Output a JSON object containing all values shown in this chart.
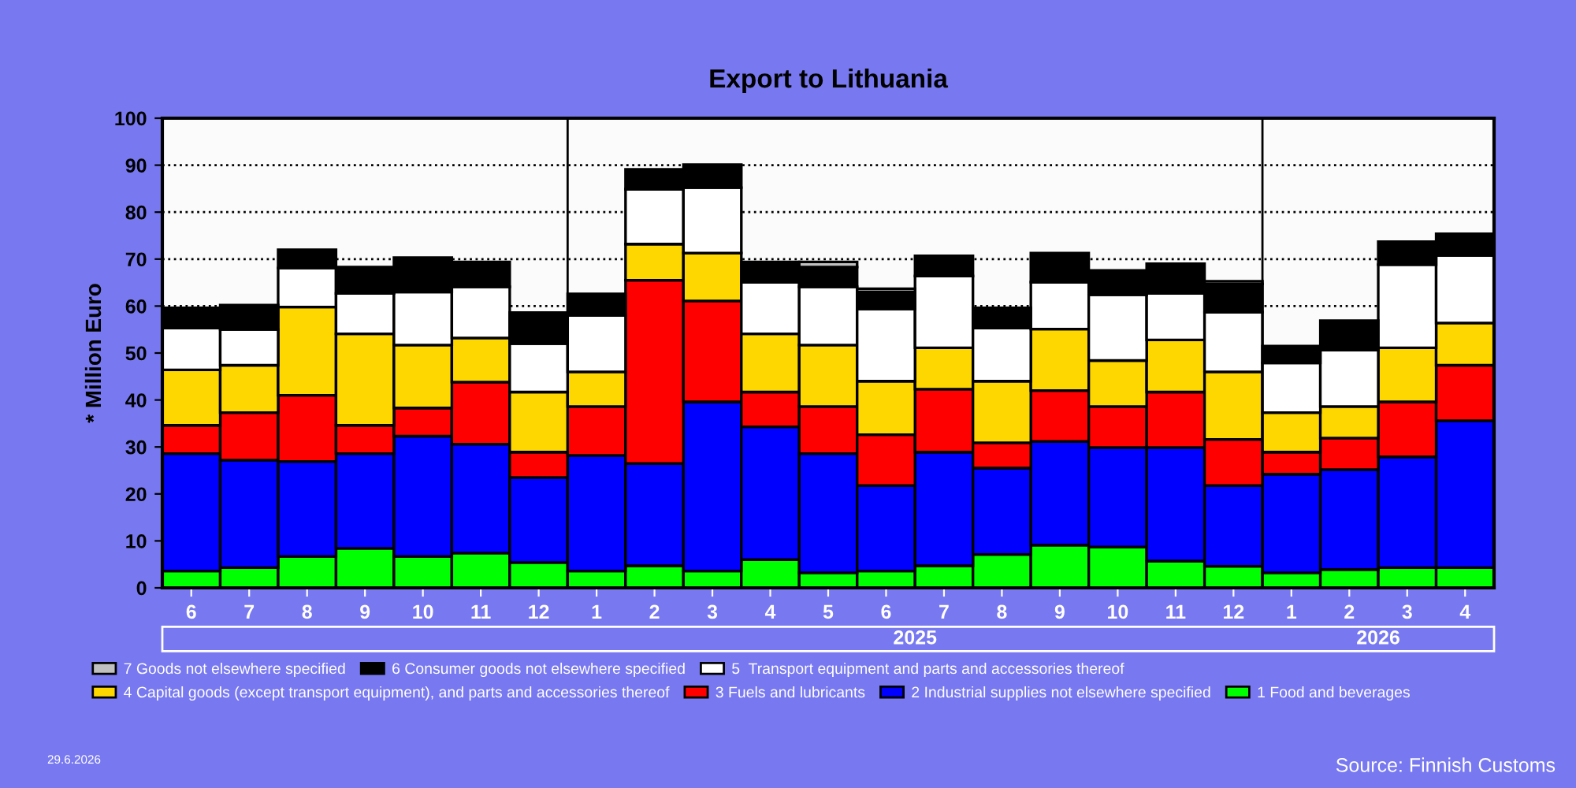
{
  "chart_data": {
    "type": "bar",
    "stacked": true,
    "title": "Export to Lithuania",
    "ylabel": "* Million Euro",
    "categories": [
      "6",
      "7",
      "8",
      "9",
      "10",
      "11",
      "12",
      "1",
      "2",
      "3",
      "4",
      "5",
      "6",
      "7",
      "8",
      "9",
      "10",
      "11",
      "12",
      "1",
      "2",
      "3",
      "4"
    ],
    "series": [
      {
        "name": "1 Food and beverages",
        "color": "#00ff00",
        "values": [
          3.6,
          4.3,
          6.7,
          8.4,
          6.7,
          7.4,
          5.4,
          3.6,
          4.7,
          3.6,
          6.0,
          3.2,
          3.6,
          4.7,
          7.1,
          9.1,
          8.7,
          5.7,
          4.6,
          3.2,
          3.9,
          4.3,
          4.3
        ]
      },
      {
        "name": "2 Industrial supplies not elsewhere specified",
        "color": "#0000ff",
        "values": [
          25.0,
          22.9,
          20.2,
          20.2,
          25.6,
          23.2,
          18.1,
          24.6,
          21.8,
          36.0,
          28.3,
          25.4,
          18.2,
          24.2,
          18.4,
          22.1,
          21.2,
          24.2,
          17.2,
          21.0,
          21.3,
          23.6,
          31.3
        ]
      },
      {
        "name": "3 Fuels and lubricants",
        "color": "#ff0000",
        "values": [
          6.0,
          10.1,
          14.1,
          6.0,
          6.0,
          13.2,
          5.4,
          10.4,
          39.0,
          21.5,
          7.4,
          10.0,
          10.8,
          13.4,
          5.4,
          10.8,
          8.7,
          11.8,
          9.8,
          4.7,
          6.7,
          11.7,
          11.8
        ]
      },
      {
        "name": "4 Capital goods (except transport equipment), and parts and accessories thereof",
        "color": "#ffd700",
        "values": [
          11.8,
          10.1,
          18.8,
          19.5,
          13.4,
          9.4,
          12.8,
          7.4,
          7.7,
          10.2,
          12.4,
          13.1,
          11.4,
          8.8,
          13.1,
          13.1,
          9.8,
          11.1,
          14.4,
          8.4,
          6.7,
          11.5,
          9.0
        ]
      },
      {
        "name": "5  Transport equipment and parts and accessories thereof",
        "color": "#ffffff",
        "values": [
          8.9,
          7.6,
          8.3,
          8.6,
          11.3,
          10.9,
          10.3,
          12.0,
          11.7,
          13.9,
          11.0,
          12.4,
          15.4,
          15.3,
          11.3,
          10.0,
          14.0,
          9.9,
          12.7,
          10.6,
          12.0,
          17.7,
          14.4
        ]
      },
      {
        "name": "6 Consumer goods not elsewhere specified",
        "color": "#000000",
        "values": [
          4.3,
          5.2,
          3.9,
          5.6,
          7.3,
          5.3,
          6.6,
          4.6,
          4.2,
          4.9,
          4.3,
          4.2,
          3.6,
          4.3,
          4.3,
          6.2,
          5.2,
          6.3,
          6.0,
          3.6,
          6.3,
          4.9,
          4.6
        ]
      },
      {
        "name": "7 Goods not elsewhere specified",
        "color": "#c0c0c0",
        "values": [
          0,
          0,
          0,
          0,
          0,
          0,
          0,
          0,
          0,
          0,
          0,
          1.1,
          0.7,
          0,
          0,
          0,
          0,
          0,
          0.6,
          0,
          0,
          0,
          0
        ]
      }
    ],
    "ylim": [
      0,
      100
    ],
    "yticks": [
      0,
      10,
      20,
      30,
      40,
      50,
      60,
      70,
      80,
      90,
      100
    ],
    "grid": "y",
    "legend": "bottom",
    "annotations": [
      "2025",
      "2026",
      "29.6.2026",
      "Source: Finnish Customs"
    ]
  }
}
